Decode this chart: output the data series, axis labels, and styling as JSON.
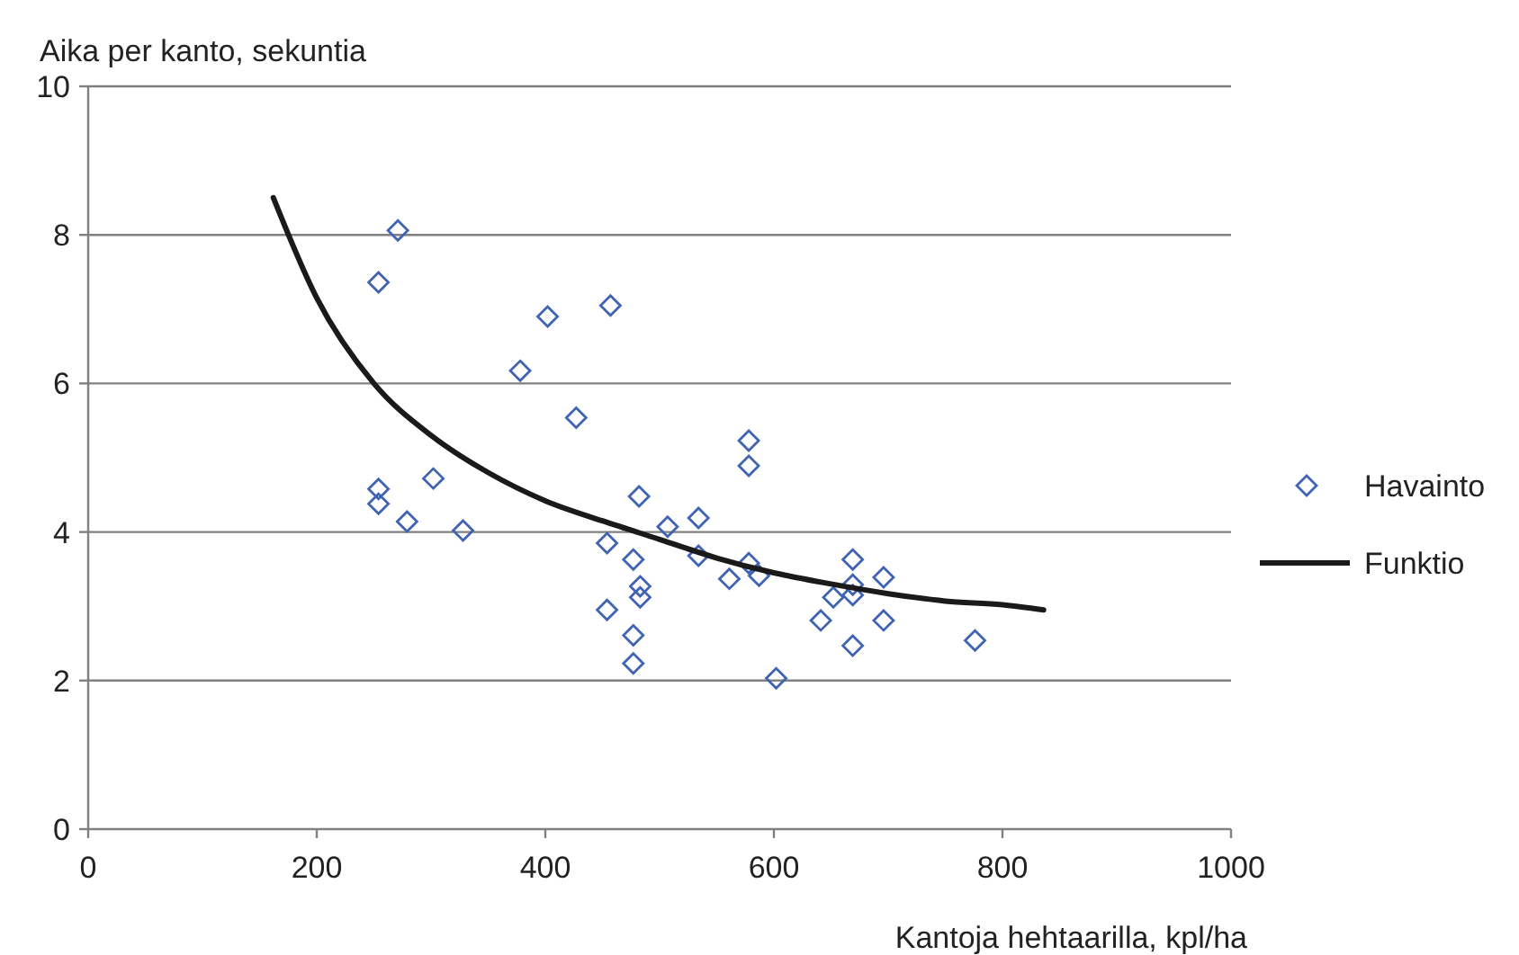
{
  "chart_data": {
    "type": "scatter",
    "ylabel": "Aika per kanto, sekuntia",
    "xlabel": "Kantoja hehtaarilla, kpl/ha",
    "xlim": [
      0,
      1000
    ],
    "xticks": [
      0,
      200,
      400,
      600,
      800,
      1000
    ],
    "ylim": [
      0,
      10
    ],
    "yticks": [
      0,
      2,
      4,
      6,
      8,
      10
    ],
    "grid": "y",
    "legend": "right",
    "series": [
      {
        "name": "Havainto",
        "marker": "diamond",
        "color": "#4063b4",
        "x": [
          271,
          254,
          254,
          254,
          279,
          302,
          328,
          378,
          402,
          457,
          427,
          454,
          454,
          482,
          477,
          483,
          483,
          477,
          477,
          507,
          534,
          534,
          578,
          578,
          578,
          561,
          587,
          602,
          641,
          652,
          669,
          669,
          669,
          696,
          696,
          669,
          776
        ],
        "values": [
          8.06,
          7.36,
          4.58,
          4.38,
          4.14,
          4.72,
          4.02,
          6.17,
          6.9,
          7.05,
          5.54,
          3.85,
          2.95,
          4.48,
          3.63,
          3.27,
          3.12,
          2.61,
          2.23,
          4.07,
          4.19,
          3.68,
          5.23,
          4.89,
          3.58,
          3.37,
          3.41,
          2.03,
          2.81,
          3.12,
          3.63,
          3.29,
          3.15,
          3.39,
          2.81,
          2.47,
          2.54
        ]
      },
      {
        "name": "Funktio",
        "type": "line",
        "marker": "none",
        "line_style": "solid",
        "color": "#1a1a1a",
        "x": [
          162,
          200,
          250,
          300,
          350,
          400,
          450,
          500,
          550,
          600,
          650,
          700,
          750,
          800,
          836
        ],
        "values": [
          8.5,
          7.15,
          6.0,
          5.3,
          4.8,
          4.42,
          4.15,
          3.9,
          3.65,
          3.45,
          3.3,
          3.17,
          3.07,
          3.02,
          2.95
        ]
      }
    ]
  }
}
